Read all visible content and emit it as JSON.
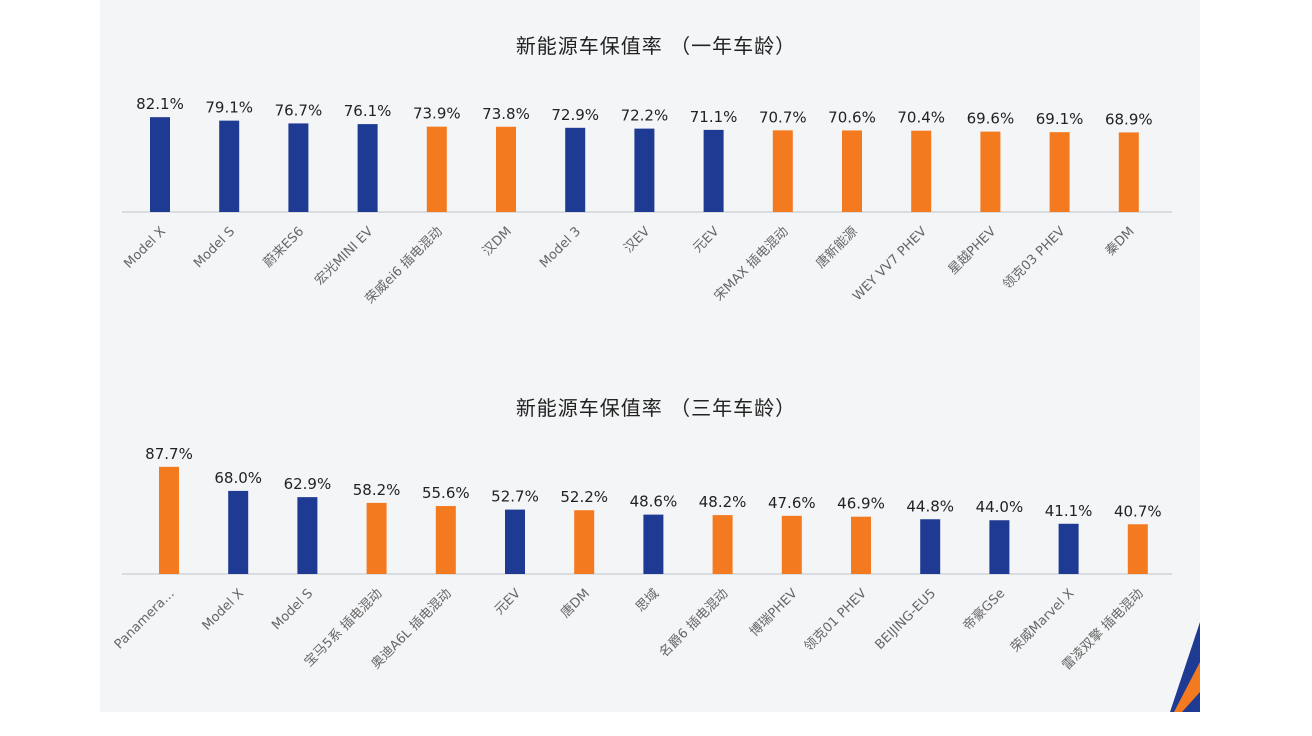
{
  "colors": {
    "blue": "#1f3a93",
    "orange": "#f47a20",
    "axis": "#d0d3d8",
    "label": "#222222",
    "tick": "#666666"
  },
  "chart_data": [
    {
      "type": "bar",
      "title": "新能源车保值率 （一年车龄）",
      "categories": [
        "Model X",
        "Model S",
        "蔚来ES6",
        "宏光MINI EV",
        "荣威ei6 插电混动",
        "汉DM",
        "Model 3",
        "汉EV",
        "元EV",
        "宋MAX 插电混动",
        "唐新能源",
        "WEY VV7 PHEV",
        "星越PHEV",
        "领克03 PHEV",
        "秦DM"
      ],
      "values": [
        82.1,
        79.1,
        76.7,
        76.1,
        73.9,
        73.8,
        72.9,
        72.2,
        71.1,
        70.7,
        70.6,
        70.4,
        69.6,
        69.1,
        68.9
      ],
      "value_labels": [
        "82.1%",
        "79.1%",
        "76.7%",
        "76.1%",
        "73.9%",
        "73.8%",
        "72.9%",
        "72.2%",
        "71.1%",
        "70.7%",
        "70.6%",
        "70.4%",
        "69.6%",
        "69.1%",
        "68.9%"
      ],
      "bar_colors": [
        "blue",
        "blue",
        "blue",
        "blue",
        "orange",
        "orange",
        "blue",
        "blue",
        "blue",
        "orange",
        "orange",
        "orange",
        "orange",
        "orange",
        "orange"
      ],
      "ylim": [
        0,
        100
      ],
      "xlabel": "",
      "ylabel": ""
    },
    {
      "type": "bar",
      "title": "新能源车保值率 （三年车龄）",
      "categories": [
        "Panamera…",
        "Model X",
        "Model S",
        "宝马5系 插电混动",
        "奥迪A6L 插电混动",
        "元EV",
        "唐DM",
        "思域",
        "名爵6 插电混动",
        "博瑞PHEV",
        "领克01 PHEV",
        "BEIJING-EU5",
        "帝豪GSe",
        "荣威Marvel X",
        "雷凌双擎 插电混动"
      ],
      "values": [
        87.7,
        68.0,
        62.9,
        58.2,
        55.6,
        52.7,
        52.2,
        48.6,
        48.2,
        47.6,
        46.9,
        44.8,
        44.0,
        41.1,
        40.7
      ],
      "value_labels": [
        "87.7%",
        "68.0%",
        "62.9%",
        "58.2%",
        "55.6%",
        "52.7%",
        "52.2%",
        "48.6%",
        "48.2%",
        "47.6%",
        "46.9%",
        "44.8%",
        "44.0%",
        "41.1%",
        "40.7%"
      ],
      "bar_colors": [
        "orange",
        "blue",
        "blue",
        "orange",
        "orange",
        "blue",
        "orange",
        "blue",
        "orange",
        "orange",
        "orange",
        "blue",
        "blue",
        "blue",
        "orange"
      ],
      "ylim": [
        0,
        100
      ],
      "xlabel": "",
      "ylabel": ""
    }
  ]
}
